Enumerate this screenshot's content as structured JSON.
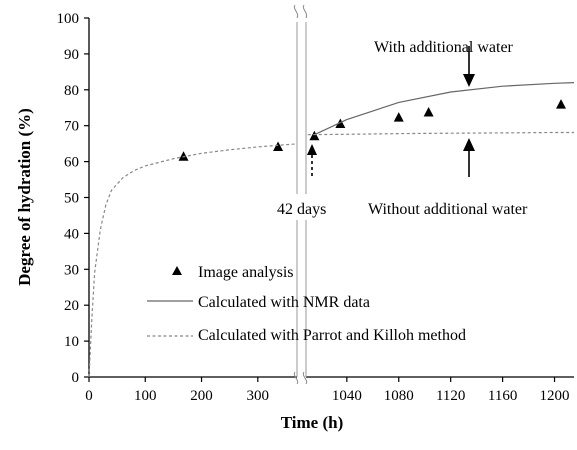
{
  "chart_data": {
    "type": "scatter",
    "xlabel": "Time (h)",
    "ylabel": "Degree of hydration (%)",
    "ylim": [
      0,
      100
    ],
    "y_ticks": [
      0,
      10,
      20,
      30,
      40,
      50,
      60,
      70,
      80,
      90,
      100
    ],
    "axis_break": true,
    "x_segments": [
      {
        "range": [
          0,
          375
        ],
        "ticks": [
          0,
          100,
          200,
          300
        ]
      },
      {
        "range": [
          1007,
          1215
        ],
        "ticks": [
          1040,
          1080,
          1120,
          1160,
          1200
        ]
      }
    ],
    "grid": false,
    "legend_position": "bottom-left",
    "series": [
      {
        "name": "Image analysis",
        "kind": "marker-triangle",
        "points": [
          [
            168,
            61.5
          ],
          [
            336,
            64.2
          ],
          [
            1015,
            67.2
          ],
          [
            1035,
            70.6
          ],
          [
            1080,
            72.4
          ],
          [
            1103,
            73.8
          ],
          [
            1205,
            76.0
          ]
        ]
      },
      {
        "name": "Calculated with NMR data",
        "kind": "solid-line",
        "points": [
          [
            1015,
            67.5
          ],
          [
            1040,
            71.7
          ],
          [
            1080,
            76.5
          ],
          [
            1120,
            79.4
          ],
          [
            1160,
            81.0
          ],
          [
            1200,
            81.8
          ],
          [
            1215,
            82.0
          ]
        ]
      },
      {
        "name": "Calculated with Parrot and Killoh method",
        "kind": "dashed-line",
        "points": [
          [
            0,
            0
          ],
          [
            5,
            16
          ],
          [
            10,
            29
          ],
          [
            20,
            41
          ],
          [
            30,
            48
          ],
          [
            40,
            52
          ],
          [
            60,
            55.5
          ],
          [
            80,
            57.5
          ],
          [
            100,
            58.8
          ],
          [
            150,
            60.8
          ],
          [
            200,
            62.3
          ],
          [
            250,
            63.3
          ],
          [
            300,
            64.1
          ],
          [
            350,
            64.7
          ],
          [
            375,
            65.0
          ],
          [
            1007,
            67.5
          ],
          [
            1040,
            67.6
          ],
          [
            1080,
            67.8
          ],
          [
            1120,
            67.9
          ],
          [
            1160,
            68.0
          ],
          [
            1200,
            68.1
          ],
          [
            1215,
            68.1
          ]
        ]
      }
    ],
    "annotations": {
      "with_water": "With additional water",
      "without_water": "Without additional water",
      "days": "42 days"
    }
  }
}
